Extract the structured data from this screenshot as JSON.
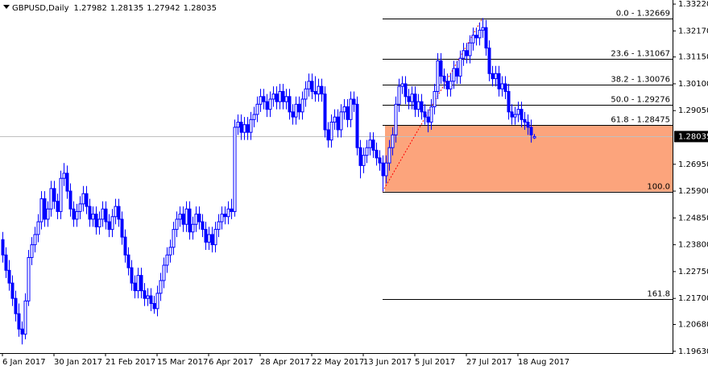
{
  "chart_data": {
    "type": "candlestick",
    "title": "GBPUSD,Daily",
    "up_color": "#ffffff",
    "down_color": "#0000ff",
    "outline_color": "#0000ff",
    "ylim": [
      1.1956,
      1.3338
    ],
    "yticks": [
      {
        "value": 1.3322,
        "label": "1.33220"
      },
      {
        "value": 1.3217,
        "label": "1.32170"
      },
      {
        "value": 1.3115,
        "label": "1.31150"
      },
      {
        "value": 1.301,
        "label": "1.30100"
      },
      {
        "value": 1.2905,
        "label": "1.29050"
      },
      {
        "value": 1.2695,
        "label": "1.26950"
      },
      {
        "value": 1.259,
        "label": "1.25900"
      },
      {
        "value": 1.2485,
        "label": "1.24850"
      },
      {
        "value": 1.238,
        "label": "1.23800"
      },
      {
        "value": 1.2275,
        "label": "1.22750"
      },
      {
        "value": 1.217,
        "label": "1.21700"
      },
      {
        "value": 1.2068,
        "label": "1.20680"
      },
      {
        "value": 1.1963,
        "label": "1.19630"
      }
    ],
    "current_price": 1.28035,
    "xticks": [
      {
        "value": 0,
        "label": "6 Jan 2017"
      },
      {
        "value": 16,
        "label": "30 Jan 2017"
      },
      {
        "value": 32,
        "label": "21 Feb 2017"
      },
      {
        "value": 48,
        "label": "15 Mar 2017"
      },
      {
        "value": 64,
        "label": "6 Apr 2017"
      },
      {
        "value": 80,
        "label": "28 Apr 2017"
      },
      {
        "value": 96,
        "label": "22 May 2017"
      },
      {
        "value": 112,
        "label": "13 Jun 2017"
      },
      {
        "value": 128,
        "label": "5 Jul 2017"
      },
      {
        "value": 144,
        "label": "27 Jul 2017"
      },
      {
        "value": 160,
        "label": "18 Aug 2017"
      }
    ],
    "fib_levels": [
      {
        "label": "0.0 - 1.32669",
        "price": 1.32669
      },
      {
        "label": "23.6 - 1.31067",
        "price": 1.31067
      },
      {
        "label": "38.2 - 1.30076",
        "price": 1.30076
      },
      {
        "label": "50.0 - 1.29276",
        "price": 1.29276
      },
      {
        "label": "61.8 - 1.28475",
        "price": 1.28475
      },
      {
        "label": "100.0",
        "price": 1.25881
      },
      {
        "label": "161.8",
        "price": 1.21686
      }
    ],
    "fib_zone_color": "#fca47c",
    "ohlc": [
      [
        1.24,
        1.243,
        1.231,
        1.234
      ],
      [
        1.234,
        1.237,
        1.225,
        1.228
      ],
      [
        1.228,
        1.232,
        1.22,
        1.223
      ],
      [
        1.223,
        1.226,
        1.214,
        1.217
      ],
      [
        1.217,
        1.22,
        1.208,
        1.211
      ],
      [
        1.211,
        1.215,
        1.202,
        1.205
      ],
      [
        1.205,
        1.208,
        1.199,
        1.203
      ],
      [
        1.203,
        1.219,
        1.201,
        1.216
      ],
      [
        1.216,
        1.236,
        1.214,
        1.233
      ],
      [
        1.233,
        1.241,
        1.23,
        1.238
      ],
      [
        1.238,
        1.245,
        1.235,
        1.242
      ],
      [
        1.242,
        1.25,
        1.239,
        1.247
      ],
      [
        1.247,
        1.259,
        1.244,
        1.256
      ],
      [
        1.256,
        1.259,
        1.245,
        1.248
      ],
      [
        1.248,
        1.255,
        1.245,
        1.252
      ],
      [
        1.252,
        1.263,
        1.249,
        1.26
      ],
      [
        1.26,
        1.263,
        1.252,
        1.255
      ],
      [
        1.255,
        1.258,
        1.248,
        1.251
      ],
      [
        1.251,
        1.267,
        1.248,
        1.264
      ],
      [
        1.264,
        1.27,
        1.261,
        1.266
      ],
      [
        1.266,
        1.269,
        1.256,
        1.259
      ],
      [
        1.259,
        1.262,
        1.249,
        1.252
      ],
      [
        1.252,
        1.255,
        1.245,
        1.248
      ],
      [
        1.248,
        1.254,
        1.245,
        1.251
      ],
      [
        1.251,
        1.257,
        1.248,
        1.254
      ],
      [
        1.254,
        1.261,
        1.251,
        1.258
      ],
      [
        1.258,
        1.261,
        1.25,
        1.253
      ],
      [
        1.253,
        1.256,
        1.245,
        1.248
      ],
      [
        1.248,
        1.253,
        1.245,
        1.25
      ],
      [
        1.25,
        1.253,
        1.242,
        1.245
      ],
      [
        1.245,
        1.251,
        1.242,
        1.248
      ],
      [
        1.248,
        1.255,
        1.245,
        1.252
      ],
      [
        1.252,
        1.255,
        1.244,
        1.247
      ],
      [
        1.247,
        1.25,
        1.241,
        1.244
      ],
      [
        1.244,
        1.252,
        1.241,
        1.249
      ],
      [
        1.249,
        1.256,
        1.246,
        1.253
      ],
      [
        1.253,
        1.256,
        1.245,
        1.248
      ],
      [
        1.248,
        1.251,
        1.238,
        1.241
      ],
      [
        1.241,
        1.244,
        1.231,
        1.234
      ],
      [
        1.234,
        1.237,
        1.226,
        1.229
      ],
      [
        1.229,
        1.232,
        1.22,
        1.223
      ],
      [
        1.223,
        1.226,
        1.217,
        1.22
      ],
      [
        1.22,
        1.229,
        1.217,
        1.226
      ],
      [
        1.226,
        1.229,
        1.217,
        1.22
      ],
      [
        1.22,
        1.223,
        1.214,
        1.217
      ],
      [
        1.217,
        1.221,
        1.214,
        1.218
      ],
      [
        1.218,
        1.221,
        1.212,
        1.215
      ],
      [
        1.215,
        1.218,
        1.211,
        1.213
      ],
      [
        1.213,
        1.222,
        1.21,
        1.219
      ],
      [
        1.219,
        1.227,
        1.216,
        1.224
      ],
      [
        1.224,
        1.233,
        1.221,
        1.23
      ],
      [
        1.23,
        1.237,
        1.227,
        1.234
      ],
      [
        1.234,
        1.24,
        1.231,
        1.237
      ],
      [
        1.237,
        1.247,
        1.234,
        1.244
      ],
      [
        1.244,
        1.251,
        1.241,
        1.248
      ],
      [
        1.248,
        1.253,
        1.245,
        1.25
      ],
      [
        1.25,
        1.253,
        1.243,
        1.246
      ],
      [
        1.246,
        1.255,
        1.243,
        1.252
      ],
      [
        1.252,
        1.255,
        1.24,
        1.243
      ],
      [
        1.243,
        1.249,
        1.24,
        1.246
      ],
      [
        1.246,
        1.253,
        1.243,
        1.25
      ],
      [
        1.25,
        1.253,
        1.244,
        1.247
      ],
      [
        1.247,
        1.25,
        1.241,
        1.244
      ],
      [
        1.244,
        1.247,
        1.236,
        1.239
      ],
      [
        1.239,
        1.245,
        1.236,
        1.242
      ],
      [
        1.242,
        1.245,
        1.235,
        1.238
      ],
      [
        1.238,
        1.247,
        1.235,
        1.244
      ],
      [
        1.244,
        1.25,
        1.241,
        1.247
      ],
      [
        1.247,
        1.253,
        1.244,
        1.25
      ],
      [
        1.25,
        1.253,
        1.246,
        1.249
      ],
      [
        1.249,
        1.255,
        1.246,
        1.252
      ],
      [
        1.252,
        1.256,
        1.248,
        1.251
      ],
      [
        1.251,
        1.287,
        1.249,
        1.284
      ],
      [
        1.284,
        1.289,
        1.281,
        1.286
      ],
      [
        1.286,
        1.289,
        1.279,
        1.282
      ],
      [
        1.282,
        1.288,
        1.279,
        1.285
      ],
      [
        1.285,
        1.288,
        1.279,
        1.282
      ],
      [
        1.282,
        1.29,
        1.279,
        1.287
      ],
      [
        1.287,
        1.292,
        1.284,
        1.289
      ],
      [
        1.289,
        1.296,
        1.286,
        1.293
      ],
      [
        1.293,
        1.299,
        1.29,
        1.296
      ],
      [
        1.296,
        1.299,
        1.291,
        1.294
      ],
      [
        1.294,
        1.297,
        1.288,
        1.291
      ],
      [
        1.291,
        1.298,
        1.288,
        1.295
      ],
      [
        1.295,
        1.3,
        1.292,
        1.297
      ],
      [
        1.297,
        1.3,
        1.291,
        1.294
      ],
      [
        1.294,
        1.301,
        1.291,
        1.298
      ],
      [
        1.298,
        1.301,
        1.291,
        1.294
      ],
      [
        1.294,
        1.299,
        1.291,
        1.296
      ],
      [
        1.296,
        1.299,
        1.287,
        1.29
      ],
      [
        1.29,
        1.293,
        1.285,
        1.288
      ],
      [
        1.288,
        1.296,
        1.285,
        1.293
      ],
      [
        1.293,
        1.296,
        1.287,
        1.29
      ],
      [
        1.29,
        1.298,
        1.287,
        1.295
      ],
      [
        1.295,
        1.302,
        1.292,
        1.299
      ],
      [
        1.299,
        1.305,
        1.296,
        1.302
      ],
      [
        1.302,
        1.305,
        1.295,
        1.298
      ],
      [
        1.298,
        1.304,
        1.294,
        1.297
      ],
      [
        1.297,
        1.303,
        1.294,
        1.3
      ],
      [
        1.3,
        1.303,
        1.294,
        1.297
      ],
      [
        1.297,
        1.3,
        1.28,
        1.283
      ],
      [
        1.283,
        1.286,
        1.276,
        1.279
      ],
      [
        1.279,
        1.289,
        1.276,
        1.286
      ],
      [
        1.286,
        1.291,
        1.283,
        1.288
      ],
      [
        1.288,
        1.291,
        1.28,
        1.283
      ],
      [
        1.283,
        1.293,
        1.28,
        1.29
      ],
      [
        1.29,
        1.295,
        1.287,
        1.292
      ],
      [
        1.292,
        1.295,
        1.284,
        1.287
      ],
      [
        1.287,
        1.298,
        1.284,
        1.295
      ],
      [
        1.295,
        1.298,
        1.29,
        1.293
      ],
      [
        1.293,
        1.296,
        1.273,
        1.276
      ],
      [
        1.276,
        1.279,
        1.264,
        1.269
      ],
      [
        1.269,
        1.276,
        1.266,
        1.273
      ],
      [
        1.273,
        1.279,
        1.27,
        1.276
      ],
      [
        1.276,
        1.282,
        1.273,
        1.279
      ],
      [
        1.279,
        1.282,
        1.272,
        1.275
      ],
      [
        1.275,
        1.278,
        1.269,
        1.272
      ],
      [
        1.272,
        1.275,
        1.267,
        1.27
      ],
      [
        1.27,
        1.273,
        1.2589,
        1.265
      ],
      [
        1.265,
        1.273,
        1.262,
        1.27
      ],
      [
        1.27,
        1.279,
        1.267,
        1.276
      ],
      [
        1.276,
        1.284,
        1.273,
        1.281
      ],
      [
        1.281,
        1.296,
        1.278,
        1.293
      ],
      [
        1.293,
        1.303,
        1.29,
        1.3
      ],
      [
        1.3,
        1.304,
        1.297,
        1.301
      ],
      [
        1.301,
        1.304,
        1.293,
        1.296
      ],
      [
        1.296,
        1.299,
        1.291,
        1.294
      ],
      [
        1.294,
        1.3,
        1.291,
        1.297
      ],
      [
        1.297,
        1.3,
        1.288,
        1.291
      ],
      [
        1.291,
        1.297,
        1.288,
        1.294
      ],
      [
        1.294,
        1.297,
        1.287,
        1.29
      ],
      [
        1.29,
        1.293,
        1.285,
        1.288
      ],
      [
        1.288,
        1.291,
        1.282,
        1.286
      ],
      [
        1.286,
        1.295,
        1.283,
        1.292
      ],
      [
        1.292,
        1.301,
        1.289,
        1.298
      ],
      [
        1.298,
        1.313,
        1.295,
        1.31
      ],
      [
        1.31,
        1.313,
        1.301,
        1.304
      ],
      [
        1.304,
        1.307,
        1.299,
        1.302
      ],
      [
        1.302,
        1.305,
        1.296,
        1.299
      ],
      [
        1.299,
        1.305,
        1.296,
        1.302
      ],
      [
        1.302,
        1.31,
        1.299,
        1.307
      ],
      [
        1.307,
        1.31,
        1.301,
        1.304
      ],
      [
        1.304,
        1.314,
        1.301,
        1.311
      ],
      [
        1.311,
        1.317,
        1.308,
        1.314
      ],
      [
        1.314,
        1.317,
        1.309,
        1.312
      ],
      [
        1.312,
        1.32,
        1.309,
        1.317
      ],
      [
        1.317,
        1.323,
        1.314,
        1.32
      ],
      [
        1.32,
        1.323,
        1.316,
        1.319
      ],
      [
        1.319,
        1.325,
        1.316,
        1.322
      ],
      [
        1.322,
        1.3267,
        1.319,
        1.323
      ],
      [
        1.323,
        1.326,
        1.312,
        1.315
      ],
      [
        1.315,
        1.318,
        1.302,
        1.305
      ],
      [
        1.305,
        1.308,
        1.3,
        1.303
      ],
      [
        1.303,
        1.308,
        1.3,
        1.305
      ],
      [
        1.305,
        1.308,
        1.296,
        1.299
      ],
      [
        1.299,
        1.304,
        1.296,
        1.301
      ],
      [
        1.301,
        1.304,
        1.295,
        1.298
      ],
      [
        1.298,
        1.301,
        1.287,
        1.29
      ],
      [
        1.29,
        1.293,
        1.285,
        1.288
      ],
      [
        1.288,
        1.292,
        1.285,
        1.289
      ],
      [
        1.289,
        1.294,
        1.286,
        1.291
      ],
      [
        1.291,
        1.294,
        1.284,
        1.287
      ],
      [
        1.287,
        1.29,
        1.283,
        1.286
      ],
      [
        1.286,
        1.289,
        1.281,
        1.284
      ],
      [
        1.284,
        1.287,
        1.278,
        1.281
      ],
      [
        1.27982,
        1.28135,
        1.27942,
        1.28035
      ]
    ]
  }
}
